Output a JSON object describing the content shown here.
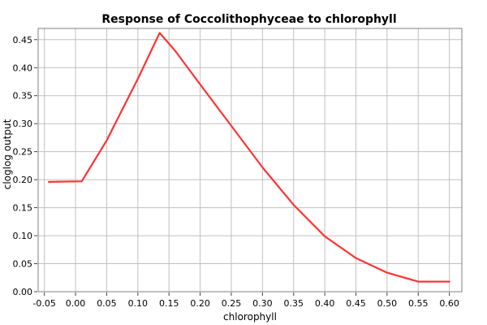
{
  "chart_data": {
    "type": "line",
    "title": "Response of Coccolithophyceae to chlorophyll",
    "xlabel": "chlorophyll",
    "ylabel": "cloglog output",
    "xlim": [
      -0.06,
      0.62
    ],
    "ylim": [
      0.0,
      0.47
    ],
    "grid": true,
    "x_ticks": [
      -0.05,
      0.0,
      0.05,
      0.1,
      0.15,
      0.2,
      0.25,
      0.3,
      0.35,
      0.4,
      0.45,
      0.5,
      0.55,
      0.6
    ],
    "x_tick_labels": [
      "-0.05",
      "0.00",
      "0.05",
      "0.10",
      "0.15",
      "0.20",
      "0.25",
      "0.30",
      "0.35",
      "0.40",
      "0.45",
      "0.50",
      "0.55",
      "0.60"
    ],
    "y_ticks": [
      0.0,
      0.05,
      0.1,
      0.15,
      0.2,
      0.25,
      0.3,
      0.35,
      0.4,
      0.45
    ],
    "y_tick_labels": [
      "0.00",
      "0.05",
      "0.10",
      "0.15",
      "0.20",
      "0.25",
      "0.30",
      "0.35",
      "0.40",
      "0.45"
    ],
    "series": [
      {
        "color": "#ff3333",
        "x": [
          -0.043,
          0.01,
          0.05,
          0.1,
          0.135,
          0.16,
          0.2,
          0.25,
          0.3,
          0.35,
          0.4,
          0.45,
          0.5,
          0.55,
          0.6
        ],
        "y": [
          0.196,
          0.197,
          0.27,
          0.38,
          0.462,
          0.43,
          0.37,
          0.296,
          0.222,
          0.155,
          0.099,
          0.06,
          0.034,
          0.018,
          0.018
        ]
      }
    ]
  }
}
